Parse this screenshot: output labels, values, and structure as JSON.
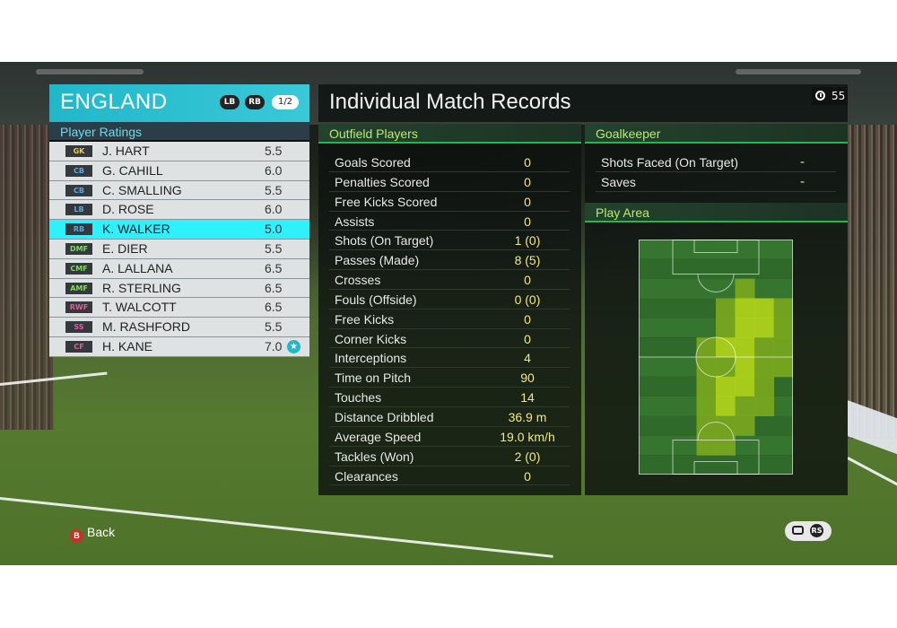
{
  "team": {
    "name": "ENGLAND",
    "button_lb": "LB",
    "button_rb": "RB",
    "page": "1/2",
    "ratings_title": "Player Ratings",
    "players": [
      {
        "pos": "GK",
        "pos_color": "#f2c94c",
        "name": "J. HART",
        "rating": "5.5"
      },
      {
        "pos": "CB",
        "pos_color": "#5aa7e6",
        "name": "G. CAHILL",
        "rating": "6.0"
      },
      {
        "pos": "CB",
        "pos_color": "#5aa7e6",
        "name": "C. SMALLING",
        "rating": "5.5"
      },
      {
        "pos": "LB",
        "pos_color": "#5aa7e6",
        "name": "D. ROSE",
        "rating": "6.0"
      },
      {
        "pos": "RB",
        "pos_color": "#5aa7e6",
        "name": "K. WALKER",
        "rating": "5.0",
        "selected": true
      },
      {
        "pos": "DMF",
        "pos_color": "#7ddf5a",
        "name": "E. DIER",
        "rating": "5.5"
      },
      {
        "pos": "CMF",
        "pos_color": "#7ddf5a",
        "name": "A. LALLANA",
        "rating": "6.5"
      },
      {
        "pos": "AMF",
        "pos_color": "#7ddf5a",
        "name": "R. STERLING",
        "rating": "6.5"
      },
      {
        "pos": "RWF",
        "pos_color": "#e85a9a",
        "name": "T. WALCOTT",
        "rating": "6.5"
      },
      {
        "pos": "SS",
        "pos_color": "#e85a9a",
        "name": "M. RASHFORD",
        "rating": "5.5"
      },
      {
        "pos": "CF",
        "pos_color": "#e85a9a",
        "name": "H. KANE",
        "rating": "7.0",
        "motm": true,
        "motm_icon": "star-icon"
      }
    ]
  },
  "records": {
    "title": "Individual Match Records",
    "timer_icon": "clock-icon",
    "timer": "55",
    "outfield_title": "Outfield Players",
    "outfield_stats": [
      {
        "label": "Goals Scored",
        "value": "0"
      },
      {
        "label": "Penalties Scored",
        "value": "0"
      },
      {
        "label": "Free Kicks Scored",
        "value": "0"
      },
      {
        "label": "Assists",
        "value": "0"
      },
      {
        "label": "Shots (On Target)",
        "value": "1 (0)"
      },
      {
        "label": "Passes (Made)",
        "value": "8 (5)"
      },
      {
        "label": "Crosses",
        "value": "0"
      },
      {
        "label": "Fouls (Offside)",
        "value": "0 (0)"
      },
      {
        "label": "Free Kicks",
        "value": "0"
      },
      {
        "label": "Corner Kicks",
        "value": "0"
      },
      {
        "label": "Interceptions",
        "value": "4"
      },
      {
        "label": "Time on Pitch",
        "value": "90"
      },
      {
        "label": "Touches",
        "value": "14"
      },
      {
        "label": "Distance Dribbled",
        "value": "36.9 m"
      },
      {
        "label": "Average Speed",
        "value": "19.0 km/h"
      },
      {
        "label": "Tackles (Won)",
        "value": "2 (0)"
      },
      {
        "label": "Clearances",
        "value": "0"
      }
    ],
    "goalkeeper_title": "Goalkeeper",
    "goalkeeper_stats": [
      {
        "label": "Shots Faced (On Target)",
        "value": "-"
      },
      {
        "label": "Saves",
        "value": "-"
      }
    ],
    "play_area_title": "Play Area",
    "heatmap": {
      "cols": 8,
      "rows": 12,
      "levels": [
        [
          0,
          0,
          0,
          0,
          0,
          0,
          0,
          0
        ],
        [
          0,
          0,
          0,
          0,
          0,
          0,
          0,
          0
        ],
        [
          0,
          0,
          0,
          0,
          0,
          1,
          0,
          0
        ],
        [
          0,
          0,
          0,
          0,
          1,
          2,
          2,
          1
        ],
        [
          0,
          0,
          0,
          0,
          1,
          2,
          2,
          1
        ],
        [
          0,
          0,
          0,
          1,
          2,
          2,
          1,
          1
        ],
        [
          0,
          0,
          0,
          1,
          1,
          2,
          1,
          1
        ],
        [
          0,
          0,
          0,
          1,
          2,
          2,
          1,
          0
        ],
        [
          0,
          0,
          0,
          1,
          2,
          1,
          1,
          0
        ],
        [
          0,
          0,
          0,
          1,
          1,
          1,
          0,
          0
        ],
        [
          0,
          0,
          0,
          1,
          1,
          0,
          0,
          0
        ],
        [
          0,
          0,
          0,
          0,
          0,
          0,
          0,
          0
        ]
      ],
      "colors": [
        "#2f6b2a",
        "#7aa81e",
        "#b5d61a"
      ],
      "pitch_color_a": "#2f6a2b",
      "pitch_color_b": "#357530"
    }
  },
  "footer": {
    "back_label": "Back",
    "back_icon": "B",
    "chat_icon": "chat-icon",
    "rs_icon": "RS"
  }
}
